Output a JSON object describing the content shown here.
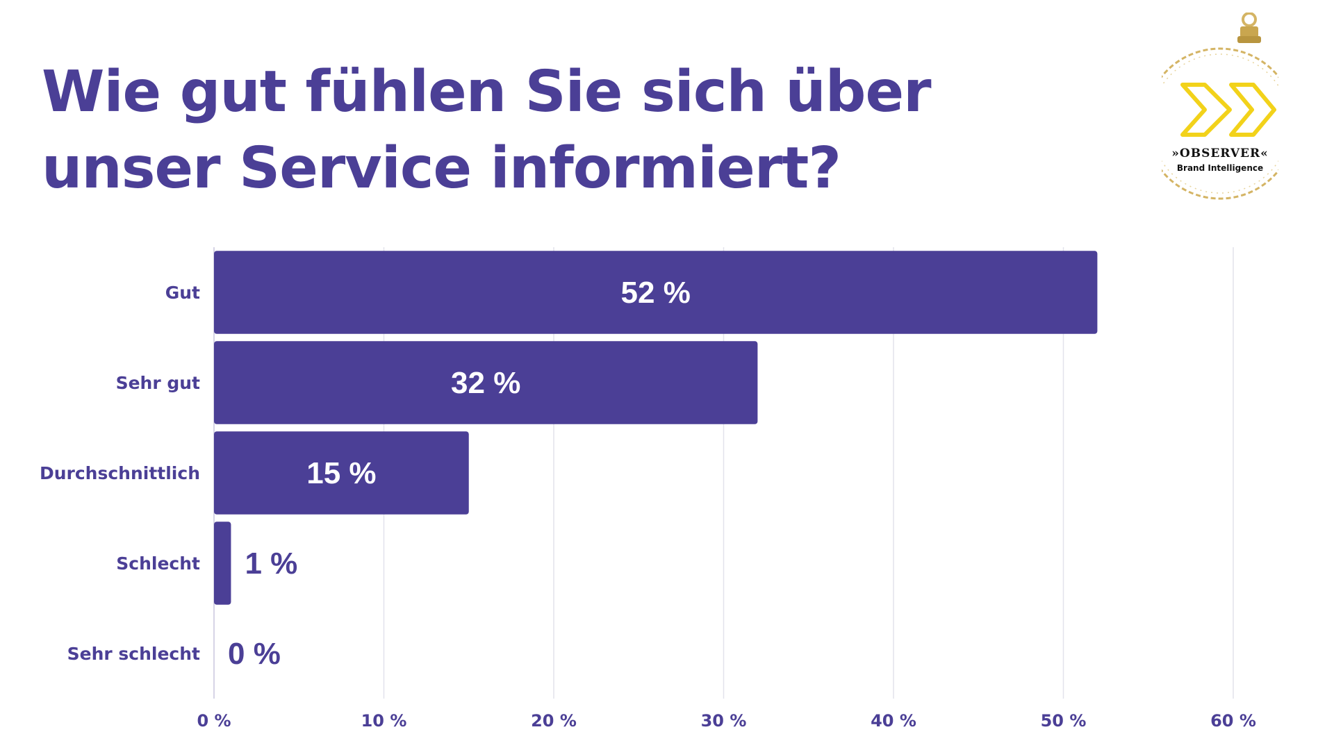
{
  "title": "Wie gut fühlen Sie sich über unser Service informiert?",
  "logo": {
    "brand": "»OBSERVER«",
    "tagline": "Brand Intelligence",
    "icon": "double-chevron-icon"
  },
  "colors": {
    "bar": "#4b3f96",
    "text": "#4b3f96",
    "grid": "#e2e2ec",
    "logo_gold": "#d4b464",
    "logo_yellow": "#f2d21a"
  },
  "chart_data": {
    "type": "bar",
    "orientation": "horizontal",
    "categories": [
      "Gut",
      "Sehr gut",
      "Durchschnittlich",
      "Schlecht",
      "Sehr schlecht"
    ],
    "values": [
      52,
      32,
      15,
      1,
      0
    ],
    "value_labels": [
      "52 %",
      "32 %",
      "15 %",
      "1 %",
      "0 %"
    ],
    "xlim": [
      0,
      60
    ],
    "xticks": [
      0,
      10,
      20,
      30,
      40,
      50,
      60
    ],
    "xtick_labels": [
      "0 %",
      "10 %",
      "20 %",
      "30 %",
      "40 %",
      "50 %",
      "60 %"
    ],
    "title": "Wie gut fühlen Sie sich über unser Service informiert?",
    "xlabel": "",
    "ylabel": "",
    "grid": true,
    "legend": "none"
  }
}
